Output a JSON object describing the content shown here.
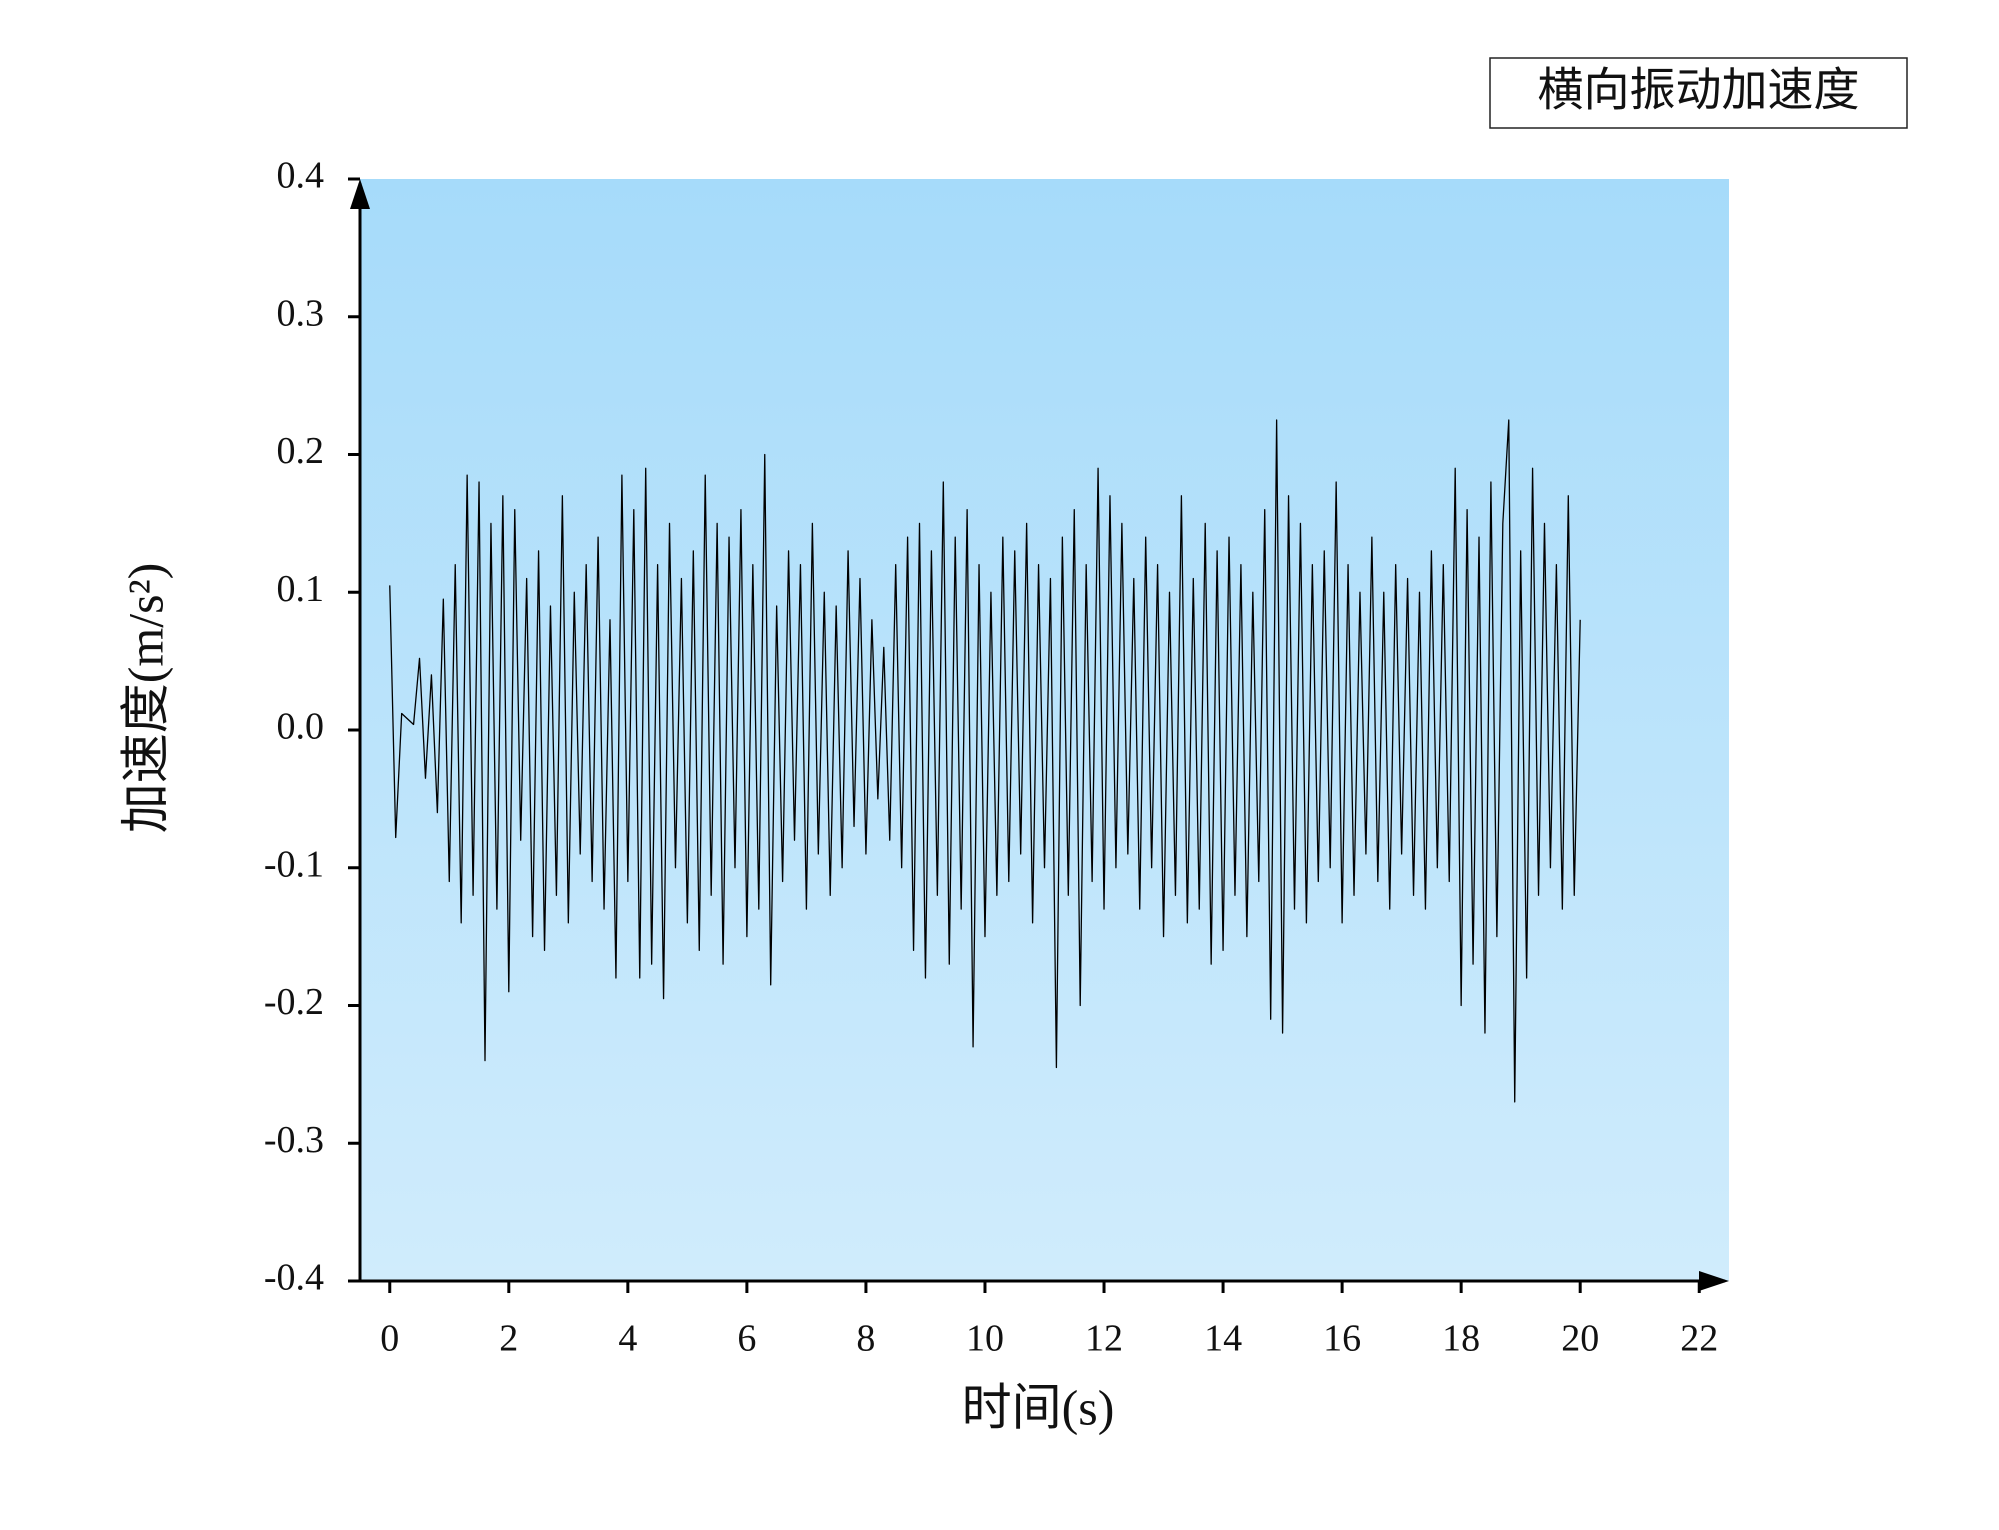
{
  "chart_data": {
    "type": "line",
    "xlabel": "时间(s)",
    "ylabel": "加速度(m/s²)",
    "xlim": [
      -0.5,
      22.5
    ],
    "ylim": [
      -0.4,
      0.4
    ],
    "xticks": [
      0,
      2,
      4,
      6,
      8,
      10,
      12,
      14,
      16,
      18,
      20,
      22
    ],
    "yticks": [
      -0.4,
      -0.3,
      -0.2,
      -0.1,
      {
        "value": 0,
        "label": "0.0"
      },
      0.1,
      0.2,
      0.3,
      0.4
    ],
    "legend": "top-right",
    "x": [
      0,
      0.1,
      0.2,
      0.3,
      0.4,
      0.5,
      0.6,
      0.7,
      0.8,
      0.9,
      1,
      1.1,
      1.2,
      1.3,
      1.4,
      1.5,
      1.6,
      1.7,
      1.8,
      1.9,
      2,
      2.1,
      2.2,
      2.3,
      2.4,
      2.5,
      2.6,
      2.7,
      2.8,
      2.9,
      3,
      3.1,
      3.2,
      3.3,
      3.4,
      3.5,
      3.6,
      3.7,
      3.8,
      3.9,
      4,
      4.1,
      4.2,
      4.3,
      4.4,
      4.5,
      4.6,
      4.7,
      4.8,
      4.9,
      5,
      5.1,
      5.2,
      5.3,
      5.4,
      5.5,
      5.6,
      5.7,
      5.8,
      5.9,
      6,
      6.1,
      6.2,
      6.3,
      6.4,
      6.5,
      6.6,
      6.7,
      6.8,
      6.9,
      7,
      7.1,
      7.2,
      7.3,
      7.4,
      7.5,
      7.6,
      7.7,
      7.8,
      7.9,
      8,
      8.1,
      8.2,
      8.3,
      8.4,
      8.5,
      8.6,
      8.7,
      8.8,
      8.9,
      9,
      9.1,
      9.2,
      9.3,
      9.4,
      9.5,
      9.6,
      9.7,
      9.8,
      9.9,
      10,
      10.1,
      10.2,
      10.3,
      10.4,
      10.5,
      10.6,
      10.7,
      10.8,
      10.9,
      11,
      11.1,
      11.2,
      11.3,
      11.4,
      11.5,
      11.6,
      11.7,
      11.8,
      11.9,
      12,
      12.1,
      12.2,
      12.3,
      12.4,
      12.5,
      12.6,
      12.7,
      12.8,
      12.9,
      13,
      13.1,
      13.2,
      13.3,
      13.4,
      13.5,
      13.6,
      13.7,
      13.8,
      13.9,
      14,
      14.1,
      14.2,
      14.3,
      14.4,
      14.5,
      14.6,
      14.7,
      14.8,
      14.9,
      15,
      15.1,
      15.2,
      15.3,
      15.4,
      15.5,
      15.6,
      15.7,
      15.8,
      15.9,
      16,
      16.1,
      16.2,
      16.3,
      16.4,
      16.5,
      16.6,
      16.7,
      16.8,
      16.9,
      17,
      17.1,
      17.2,
      17.3,
      17.4,
      17.5,
      17.6,
      17.7,
      17.8,
      17.9,
      18,
      18.1,
      18.2,
      18.3,
      18.4,
      18.5,
      18.6,
      18.7,
      18.8,
      18.9,
      19,
      19.1,
      19.2,
      19.3,
      19.4,
      19.5,
      19.6,
      19.7,
      19.8,
      19.9,
      20
    ],
    "series": [
      {
        "name": "横向振动加速度",
        "color": "#000000",
        "values": [
          0.105,
          -0.078,
          0.012,
          0.008,
          0.004,
          0.052,
          -0.035,
          0.04,
          -0.06,
          0.095,
          -0.11,
          0.12,
          -0.14,
          0.185,
          -0.12,
          0.18,
          -0.24,
          0.15,
          -0.13,
          0.17,
          -0.19,
          0.16,
          -0.08,
          0.11,
          -0.15,
          0.13,
          -0.16,
          0.09,
          -0.12,
          0.17,
          -0.14,
          0.1,
          -0.09,
          0.12,
          -0.11,
          0.14,
          -0.13,
          0.08,
          -0.18,
          0.185,
          -0.11,
          0.16,
          -0.18,
          0.19,
          -0.17,
          0.12,
          -0.195,
          0.15,
          -0.1,
          0.11,
          -0.14,
          0.13,
          -0.16,
          0.185,
          -0.12,
          0.15,
          -0.17,
          0.14,
          -0.1,
          0.16,
          -0.15,
          0.12,
          -0.13,
          0.2,
          -0.185,
          0.09,
          -0.11,
          0.13,
          -0.08,
          0.12,
          -0.13,
          0.15,
          -0.09,
          0.1,
          -0.12,
          0.09,
          -0.1,
          0.13,
          -0.07,
          0.11,
          -0.09,
          0.08,
          -0.05,
          0.06,
          -0.08,
          0.12,
          -0.1,
          0.14,
          -0.16,
          0.15,
          -0.18,
          0.13,
          -0.12,
          0.18,
          -0.17,
          0.14,
          -0.13,
          0.16,
          -0.23,
          0.12,
          -0.15,
          0.1,
          -0.12,
          0.14,
          -0.11,
          0.13,
          -0.09,
          0.15,
          -0.14,
          0.12,
          -0.1,
          0.11,
          -0.245,
          0.14,
          -0.12,
          0.16,
          -0.2,
          0.12,
          -0.11,
          0.19,
          -0.13,
          0.17,
          -0.1,
          0.15,
          -0.09,
          0.11,
          -0.13,
          0.14,
          -0.1,
          0.12,
          -0.15,
          0.1,
          -0.12,
          0.17,
          -0.14,
          0.11,
          -0.13,
          0.15,
          -0.17,
          0.13,
          -0.16,
          0.14,
          -0.12,
          0.12,
          -0.15,
          0.1,
          -0.11,
          0.16,
          -0.21,
          0.225,
          -0.22,
          0.17,
          -0.13,
          0.15,
          -0.14,
          0.12,
          -0.11,
          0.13,
          -0.1,
          0.18,
          -0.14,
          0.12,
          -0.12,
          0.1,
          -0.09,
          0.14,
          -0.11,
          0.1,
          -0.13,
          0.12,
          -0.09,
          0.11,
          -0.12,
          0.1,
          -0.13,
          0.13,
          -0.1,
          0.12,
          -0.11,
          0.19,
          -0.2,
          0.16,
          -0.17,
          0.14,
          -0.22,
          0.18,
          -0.15,
          0.15,
          0.225,
          -0.27,
          0.13,
          -0.18,
          0.19,
          -0.12,
          0.15,
          -0.1,
          0.12,
          -0.13,
          0.17,
          -0.12,
          0.08
        ]
      }
    ]
  }
}
